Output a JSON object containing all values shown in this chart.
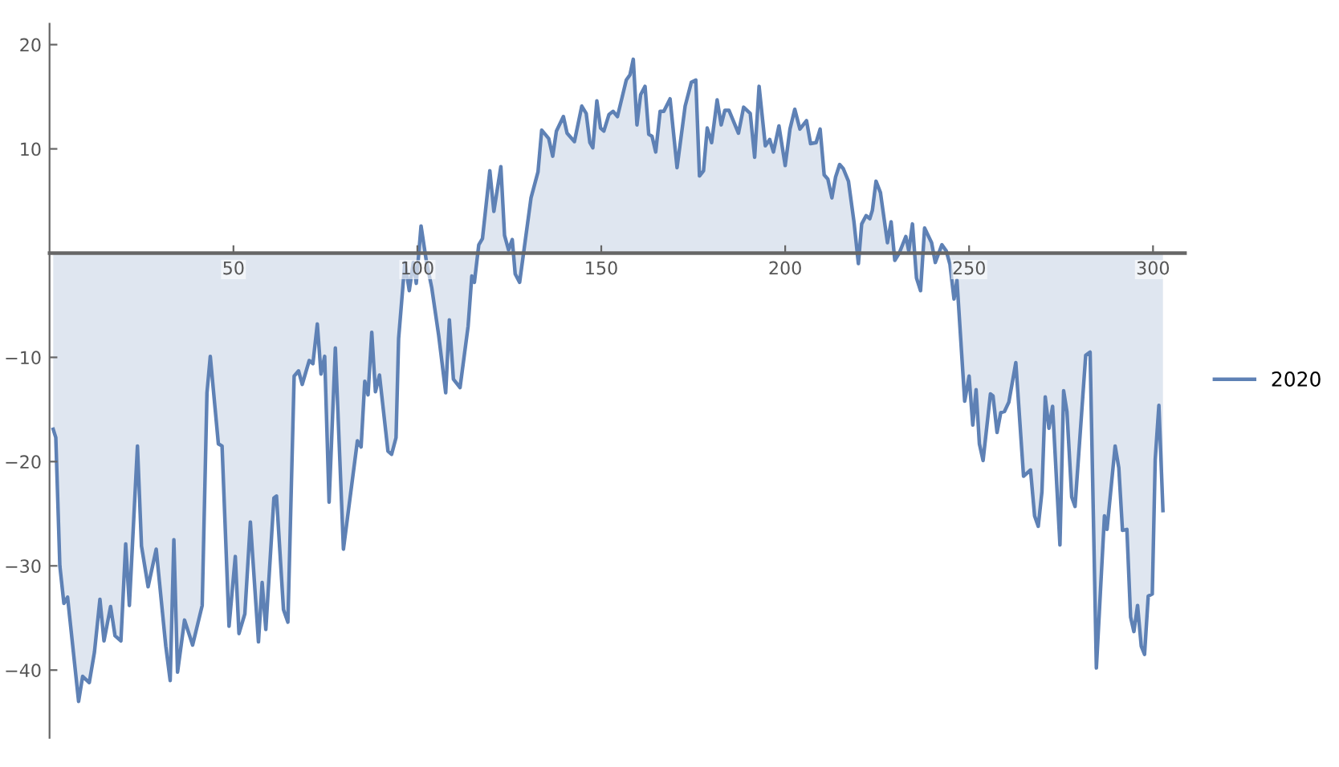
{
  "chart_data": {
    "type": "area",
    "x": [
      1,
      1.7,
      2.8,
      3.9,
      4.9,
      7.9,
      9,
      10.8,
      12.2,
      13.7,
      14.8,
      16.6,
      17.8,
      19.4,
      20.7,
      21.7,
      23.9,
      25,
      26.8,
      29,
      31.6,
      32.8,
      33.8,
      34.8,
      36.7,
      38.9,
      41.5,
      42.8,
      43.7,
      45.9,
      46.9,
      48.8,
      50.5,
      51.5,
      53.1,
      54.6,
      56.8,
      57.8,
      58.8,
      61,
      61.7,
      63.6,
      64.8,
      66.5,
      67.7,
      68.7,
      70.6,
      71.6,
      72.8,
      73.8,
      74.8,
      76,
      77.7,
      79.9,
      83.7,
      84.7,
      85.7,
      86.6,
      87.6,
      88.6,
      89.7,
      92,
      93,
      94.2,
      94.9,
      96.6,
      97.8,
      98.9,
      99.7,
      101,
      102.5,
      103.9,
      105.8,
      107.7,
      108.7,
      109.8,
      111.6,
      113.8,
      114.8,
      115.5,
      116.7,
      117.7,
      119.7,
      120.8,
      122.7,
      123.7,
      124.8,
      125.8,
      126.6,
      127.8,
      130.9,
      132.8,
      133.8,
      135.7,
      136.8,
      137.8,
      139.7,
      140.7,
      142.7,
      144.7,
      145.9,
      146.9,
      147.7,
      148.8,
      149.8,
      150.7,
      152.1,
      153.2,
      154.4,
      156.8,
      157.8,
      158.7,
      159.7,
      160.7,
      161.9,
      162.9,
      163.8,
      164.8,
      166,
      167,
      168.7,
      170.6,
      172.8,
      174.5,
      175.7,
      176.7,
      177.8,
      178.8,
      180,
      181.5,
      182.6,
      183.6,
      184.7,
      187.3,
      188.7,
      190.5,
      191.7,
      192.9,
      194.6,
      195.8,
      196.8,
      198.3,
      200,
      201.3,
      202.6,
      204,
      205.8,
      206.9,
      208.4,
      209.5,
      210.6,
      211.6,
      212.7,
      213.7,
      214.8,
      215.8,
      217.2,
      218.7,
      219.9,
      220.8,
      222,
      223,
      223.7,
      224.7,
      225.9,
      227.8,
      228.8,
      229.8,
      231,
      232.8,
      233.6,
      234.6,
      235.7,
      236.8,
      237.9,
      239.8,
      240.8,
      242.6,
      243.8,
      244.8,
      245.9,
      246.7,
      248.8,
      250,
      251,
      251.9,
      252.8,
      253.8,
      255.8,
      256.5,
      257.6,
      258.6,
      259.6,
      260.8,
      262.7,
      264.8,
      266.7,
      267.8,
      268.8,
      269.8,
      270.7,
      271.7,
      272.7,
      274.7,
      275.7,
      276.6,
      277.9,
      278.8,
      281.7,
      282.9,
      284.6,
      286.8,
      287.5,
      289.7,
      290.7,
      291.7,
      292.9,
      293.9,
      294.8,
      295.8,
      296.8,
      297.7,
      298.7,
      299.8,
      300.6,
      301.6,
      302.7
    ],
    "series": [
      {
        "name": "2020",
        "color": "#5e81b5",
        "values": [
          -16.9,
          -17.7,
          -30,
          -33.6,
          -33,
          -43,
          -40.6,
          -41.2,
          -38.3,
          -33.2,
          -37.2,
          -33.9,
          -36.7,
          -37.2,
          -27.9,
          -33.8,
          -18.5,
          -28.1,
          -32,
          -28.4,
          -37.7,
          -41,
          -27.5,
          -40.2,
          -35.2,
          -37.6,
          -33.8,
          -13.4,
          -9.9,
          -18.3,
          -18.5,
          -35.8,
          -29.1,
          -36.5,
          -34.6,
          -25.8,
          -37.3,
          -31.6,
          -36.1,
          -23.5,
          -23.3,
          -34.2,
          -35.4,
          -11.8,
          -11.3,
          -12.6,
          -10.3,
          -10.6,
          -6.8,
          -11.6,
          -9.9,
          -23.9,
          -9.1,
          -28.4,
          -18,
          -18.6,
          -12.3,
          -13.6,
          -7.6,
          -13.3,
          -11.7,
          -19,
          -19.3,
          -17.7,
          -8.2,
          -0.9,
          -3.6,
          -0.9,
          -2.9,
          2.6,
          -0.9,
          -3.3,
          -7.9,
          -13.4,
          -6.4,
          -12.1,
          -12.9,
          -7,
          -2.2,
          -2.8,
          0.8,
          1.4,
          7.9,
          4,
          8.3,
          1.7,
          0.3,
          1.3,
          -2,
          -2.8,
          5.3,
          7.8,
          11.8,
          11,
          9.3,
          11.7,
          13.1,
          11.5,
          10.7,
          14.1,
          13.4,
          10.6,
          10.1,
          14.6,
          12,
          11.7,
          13.3,
          13.6,
          13.1,
          16.6,
          17.1,
          18.6,
          12.3,
          15.2,
          16,
          11.4,
          11.2,
          9.7,
          13.6,
          13.6,
          14.8,
          8.2,
          14.1,
          16.4,
          16.6,
          7.4,
          7.9,
          12,
          10.6,
          14.7,
          12.3,
          13.7,
          13.7,
          11.5,
          14,
          13.4,
          9.2,
          16,
          10.3,
          10.9,
          9.7,
          12.2,
          8.4,
          11.9,
          13.8,
          11.9,
          12.7,
          10.5,
          10.6,
          11.9,
          7.5,
          7.1,
          5.3,
          7.3,
          8.5,
          8.1,
          6.9,
          3,
          -1,
          2.8,
          3.6,
          3.3,
          4.1,
          6.9,
          5.8,
          1,
          3,
          -0.7,
          0,
          1.6,
          0.2,
          2.8,
          -2.4,
          -3.6,
          2.4,
          1,
          -0.9,
          0.8,
          0.2,
          -1.1,
          -4.4,
          -2.6,
          -14.2,
          -11.8,
          -16.5,
          -13.1,
          -18.3,
          -19.9,
          -13.5,
          -13.7,
          -17.2,
          -15.3,
          -15.2,
          -14.3,
          -10.5,
          -21.4,
          -20.8,
          -25.2,
          -26.2,
          -22.9,
          -13.8,
          -16.8,
          -14.7,
          -28,
          -13.2,
          -15.2,
          -23.4,
          -24.3,
          -9.8,
          -9.5,
          -39.8,
          -25.2,
          -26.5,
          -18.5,
          -20.6,
          -26.6,
          -26.5,
          -34.9,
          -36.3,
          -33.8,
          -37.7,
          -38.5,
          -32.9,
          -32.7,
          -19.8,
          -14.6,
          -24.7
        ]
      }
    ],
    "xlim": [
      0,
      308.7
    ],
    "ylim": [
      -46.5,
      22
    ],
    "xticks": [
      50,
      100,
      150,
      200,
      250,
      300
    ],
    "yticks": [
      {
        "value": -40,
        "label": "−40"
      },
      {
        "value": -30,
        "label": "−30"
      },
      {
        "value": -20,
        "label": "−20"
      },
      {
        "value": -10,
        "label": "−10"
      },
      10,
      20
    ],
    "grid": false,
    "legend": "right",
    "marker": "none",
    "line_style": "solid"
  }
}
